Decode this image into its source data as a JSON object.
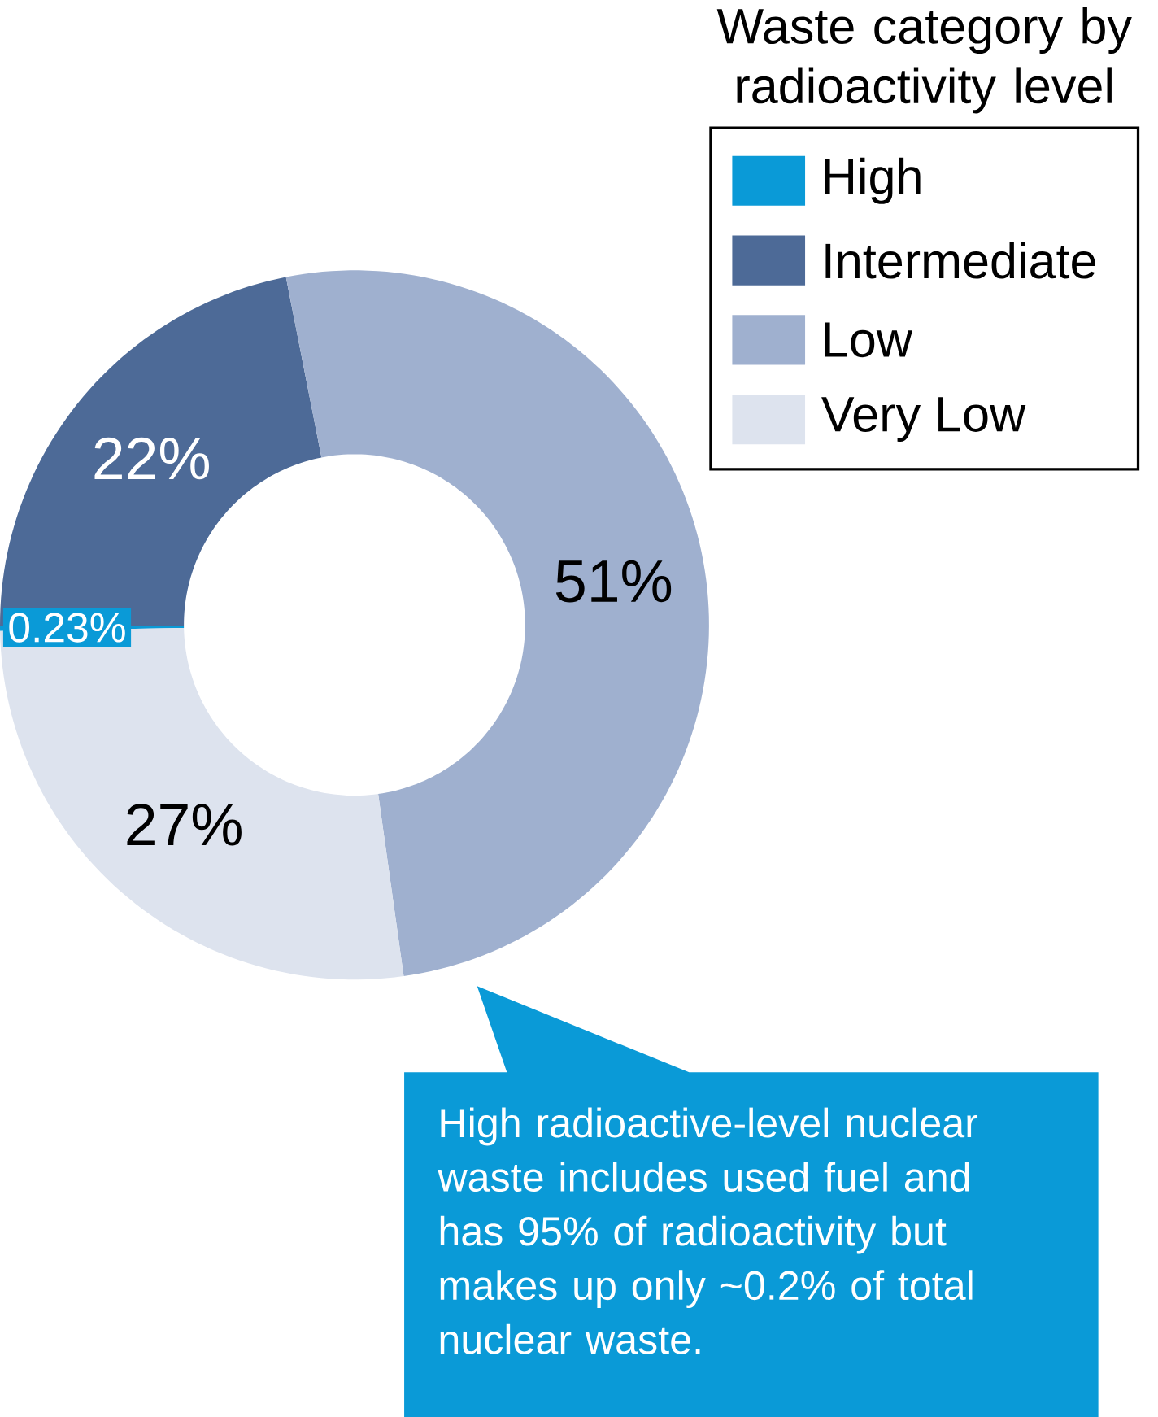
{
  "chart_data": {
    "type": "donut",
    "legend_title": "Waste category by radioactivity level",
    "categories": [
      "High",
      "Intermediate",
      "Low",
      "Very Low"
    ],
    "values": [
      0.23,
      22,
      51,
      27
    ],
    "colors": [
      "#0a9ad7",
      "#4d6a97",
      "#9fb0cf",
      "#dde3ee"
    ],
    "value_labels": [
      "0.23%",
      "22%",
      "51%",
      "27%"
    ],
    "legend": "top right",
    "annotations": [
      "High radioactive-level nuclear waste includes used fuel and has 95% of radioactivity but makes up only ~0.2% of total nuclear waste."
    ]
  }
}
